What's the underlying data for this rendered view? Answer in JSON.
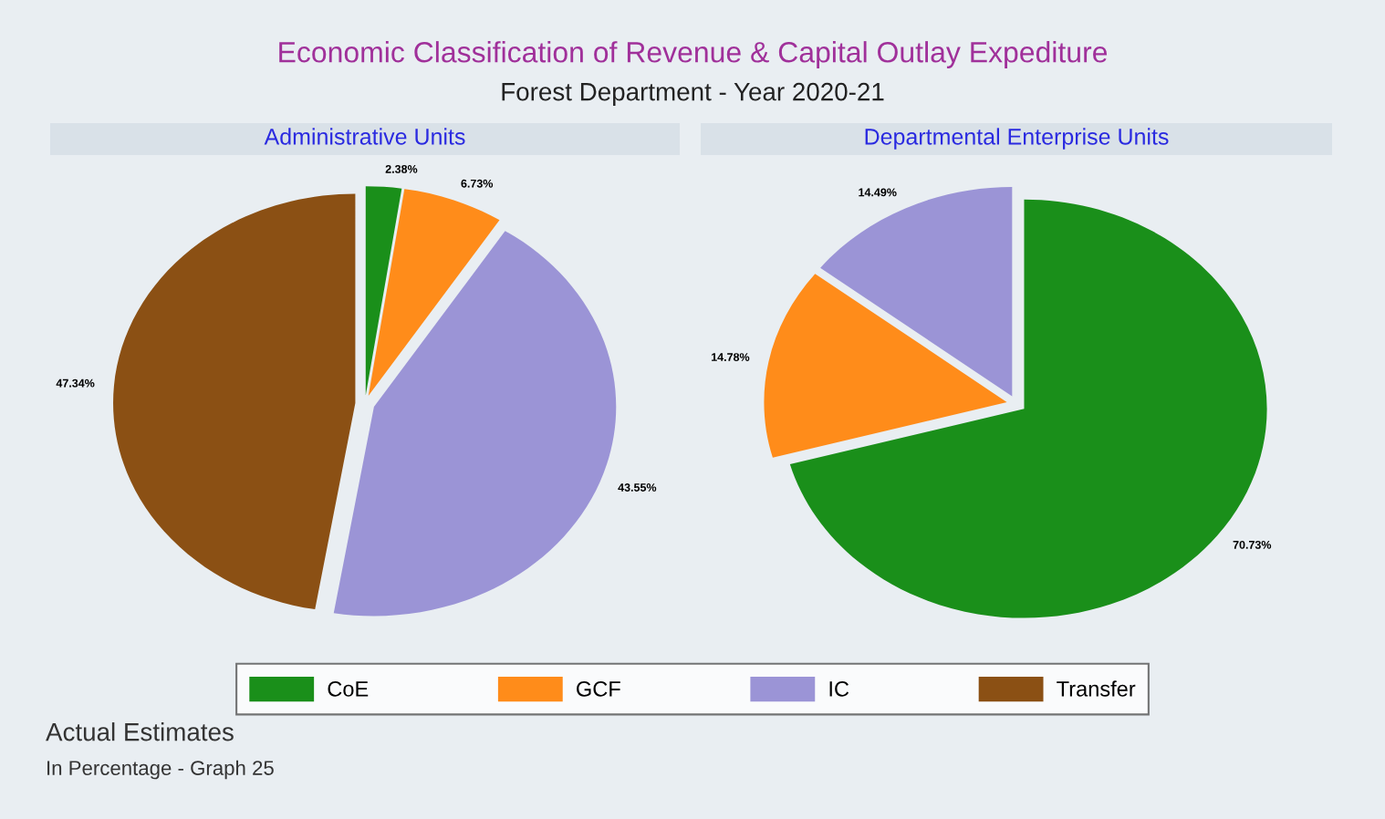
{
  "chart_data": [
    {
      "type": "pie",
      "title": "Administrative Units",
      "categories": [
        "CoE",
        "GCF",
        "IC",
        "Transfer"
      ],
      "values": [
        2.38,
        6.73,
        43.55,
        47.34
      ],
      "colors": [
        "#1a8f1a",
        "#ff8c1a",
        "#9b94d6",
        "#8b5014"
      ],
      "value_labels": [
        "2.38%",
        "6.73%",
        "43.55%",
        "47.34%"
      ],
      "legend": "bottom",
      "annotations": [
        "Economic Classification of Revenue & Capital Outlay Expediture",
        "Forest Department - Year 2020-21",
        "Actual Estimates",
        "In Percentage - Graph 25"
      ]
    },
    {
      "type": "pie",
      "title": "Departmental Enterprise Units",
      "categories": [
        null,
        null,
        null
      ],
      "values": [
        70.73,
        14.78,
        14.49
      ],
      "colors": [
        "#1a8f1a",
        "#ff8c1a",
        "#9b94d6"
      ],
      "value_labels": [
        "70.73%",
        "14.78%",
        "14.49%"
      ]
    }
  ]
}
